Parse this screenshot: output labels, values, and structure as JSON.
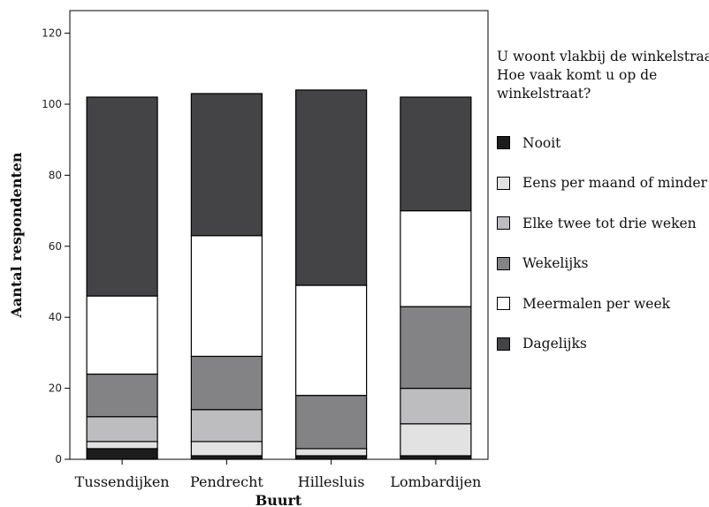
{
  "chart_data": {
    "type": "bar",
    "stacked": true,
    "categories": [
      "Tussendijken",
      "Pendrecht",
      "Hillesluis",
      "Lombardijen"
    ],
    "xlabel": "Buurt",
    "ylabel": "Aantal respondenten",
    "ylim": [
      0,
      126
    ],
    "yticks": [
      0,
      20,
      40,
      60,
      80,
      100,
      120
    ],
    "grid": false,
    "legend_position": "right",
    "legend_title": [
      "U woont vlakbij de winkelstraat.",
      "Hoe vaak komt u op de",
      "winkelstraat?"
    ],
    "series": [
      {
        "name": "Nooit",
        "color": "#1c1c1c",
        "values": [
          3,
          1,
          1,
          1
        ]
      },
      {
        "name": "Eens per maand of minder",
        "color": "#e2e2e2",
        "values": [
          2,
          4,
          2,
          9
        ]
      },
      {
        "name": "Elke twee tot drie weken",
        "color": "#bdbdbf",
        "values": [
          7,
          9,
          0,
          10
        ]
      },
      {
        "name": "Wekelijks",
        "color": "#838385",
        "values": [
          12,
          15,
          15,
          23
        ]
      },
      {
        "name": "Meermalen per week",
        "color": "#ffffff",
        "values": [
          22,
          34,
          31,
          27
        ]
      },
      {
        "name": "Dagelijks",
        "color": "#444446",
        "values": [
          56,
          40,
          55,
          32
        ]
      }
    ]
  }
}
